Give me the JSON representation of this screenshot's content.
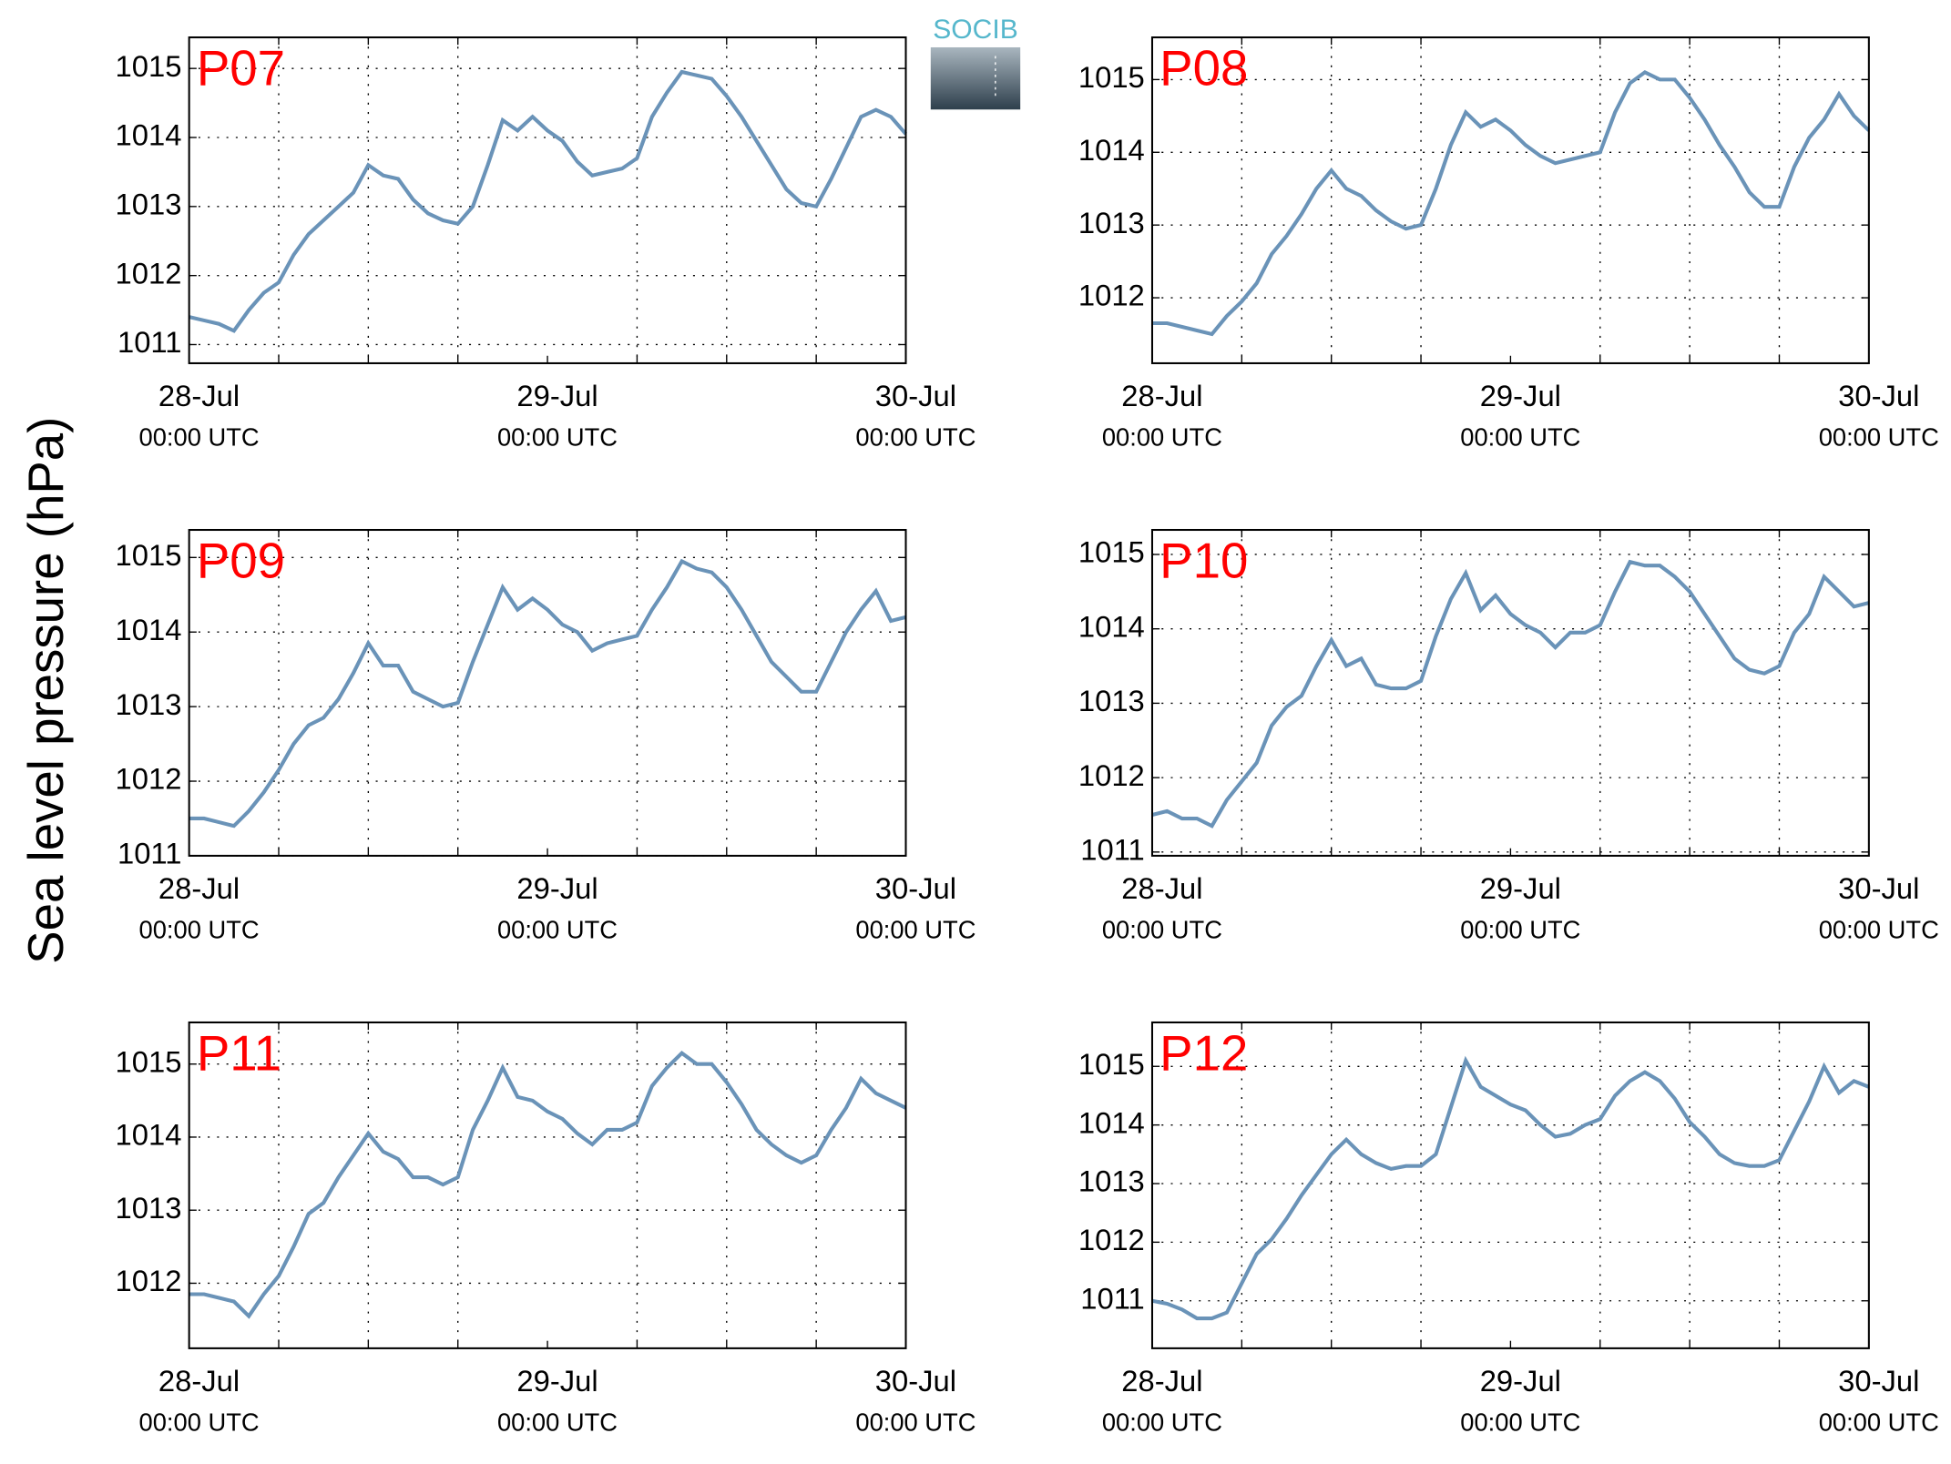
{
  "ylabel": "Sea level pressure (hPa)",
  "logo": "SOCIB",
  "chart_data": [
    {
      "type": "line",
      "title": "P07",
      "color": "#6a93b8",
      "grid": true,
      "x": [
        0,
        1,
        2,
        3,
        4,
        5,
        6,
        7,
        8,
        9,
        10,
        11,
        12,
        13,
        14,
        15,
        16,
        17,
        18,
        19,
        20,
        21,
        22,
        23,
        24,
        25,
        26,
        27,
        28,
        29,
        30,
        31,
        32,
        33,
        34,
        35,
        36,
        37,
        38,
        39,
        40,
        41,
        42,
        43,
        44,
        45,
        46,
        47,
        48
      ],
      "values": [
        1011.4,
        1011.35,
        1011.3,
        1011.2,
        1011.5,
        1011.75,
        1011.9,
        1012.3,
        1012.6,
        1012.8,
        1013.0,
        1013.2,
        1013.6,
        1013.45,
        1013.4,
        1013.1,
        1012.9,
        1012.8,
        1012.75,
        1013.0,
        1013.6,
        1014.25,
        1014.1,
        1014.3,
        1014.1,
        1013.95,
        1013.65,
        1013.45,
        1013.5,
        1013.55,
        1013.7,
        1014.3,
        1014.65,
        1014.95,
        1014.9,
        1014.85,
        1014.6,
        1014.3,
        1013.95,
        1013.6,
        1013.25,
        1013.05,
        1013.0,
        1013.4,
        1013.85,
        1014.3,
        1014.4,
        1014.3,
        1014.05
      ],
      "xlim": [
        0,
        48
      ],
      "xticks": [
        {
          "value": 0,
          "label": "28-Jul",
          "sublabel": "00:00 UTC"
        },
        {
          "value": 24,
          "label": "29-Jul",
          "sublabel": "00:00 UTC"
        },
        {
          "value": 48,
          "label": "30-Jul",
          "sublabel": "00:00 UTC"
        }
      ],
      "xminorticks": [
        6,
        12,
        18,
        30,
        36,
        42
      ],
      "ylim": [
        1010.73,
        1015.45
      ],
      "yticks": [
        1011,
        1012,
        1013,
        1014,
        1015
      ]
    },
    {
      "type": "line",
      "title": "P08",
      "color": "#6a93b8",
      "grid": true,
      "x": [
        0,
        1,
        2,
        3,
        4,
        5,
        6,
        7,
        8,
        9,
        10,
        11,
        12,
        13,
        14,
        15,
        16,
        17,
        18,
        19,
        20,
        21,
        22,
        23,
        24,
        25,
        26,
        27,
        28,
        29,
        30,
        31,
        32,
        33,
        34,
        35,
        36,
        37,
        38,
        39,
        40,
        41,
        42,
        43,
        44,
        45,
        46,
        47,
        48
      ],
      "values": [
        1011.65,
        1011.65,
        1011.6,
        1011.55,
        1011.5,
        1011.75,
        1011.95,
        1012.2,
        1012.6,
        1012.85,
        1013.15,
        1013.5,
        1013.75,
        1013.5,
        1013.4,
        1013.2,
        1013.05,
        1012.95,
        1013.0,
        1013.5,
        1014.1,
        1014.55,
        1014.35,
        1014.45,
        1014.3,
        1014.1,
        1013.95,
        1013.85,
        1013.9,
        1013.95,
        1014.0,
        1014.55,
        1014.95,
        1015.1,
        1015.0,
        1015.0,
        1014.75,
        1014.45,
        1014.1,
        1013.8,
        1013.45,
        1013.25,
        1013.25,
        1013.8,
        1014.2,
        1014.45,
        1014.8,
        1014.5,
        1014.3
      ],
      "xlim": [
        0,
        48
      ],
      "xticks": [
        {
          "value": 0,
          "label": "28-Jul",
          "sublabel": "00:00 UTC"
        },
        {
          "value": 24,
          "label": "29-Jul",
          "sublabel": "00:00 UTC"
        },
        {
          "value": 48,
          "label": "30-Jul",
          "sublabel": "00:00 UTC"
        }
      ],
      "xminorticks": [
        6,
        12,
        18,
        30,
        36,
        42
      ],
      "ylim": [
        1011.1,
        1015.58
      ],
      "yticks": [
        1012,
        1013,
        1014,
        1015
      ]
    },
    {
      "type": "line",
      "title": "P09",
      "color": "#6a93b8",
      "grid": true,
      "x": [
        0,
        1,
        2,
        3,
        4,
        5,
        6,
        7,
        8,
        9,
        10,
        11,
        12,
        13,
        14,
        15,
        16,
        17,
        18,
        19,
        20,
        21,
        22,
        23,
        24,
        25,
        26,
        27,
        28,
        29,
        30,
        31,
        32,
        33,
        34,
        35,
        36,
        37,
        38,
        39,
        40,
        41,
        42,
        43,
        44,
        45,
        46,
        47,
        48
      ],
      "values": [
        1011.5,
        1011.5,
        1011.45,
        1011.4,
        1011.6,
        1011.85,
        1012.15,
        1012.5,
        1012.75,
        1012.85,
        1013.1,
        1013.45,
        1013.85,
        1013.55,
        1013.55,
        1013.2,
        1013.1,
        1013.0,
        1013.05,
        1013.6,
        1014.1,
        1014.6,
        1014.3,
        1014.45,
        1014.3,
        1014.1,
        1014.0,
        1013.75,
        1013.85,
        1013.9,
        1013.95,
        1014.3,
        1014.6,
        1014.95,
        1014.85,
        1014.8,
        1014.6,
        1014.3,
        1013.95,
        1013.6,
        1013.4,
        1013.2,
        1013.2,
        1013.6,
        1014.0,
        1014.3,
        1014.55,
        1014.15,
        1014.2
      ],
      "xlim": [
        0,
        48
      ],
      "xticks": [
        {
          "value": 0,
          "label": "28-Jul",
          "sublabel": "00:00 UTC"
        },
        {
          "value": 24,
          "label": "29-Jul",
          "sublabel": "00:00 UTC"
        },
        {
          "value": 48,
          "label": "30-Jul",
          "sublabel": "00:00 UTC"
        }
      ],
      "xminorticks": [
        6,
        12,
        18,
        30,
        36,
        42
      ],
      "ylim": [
        1011,
        1015.37
      ],
      "yticks": [
        1011,
        1012,
        1013,
        1014,
        1015
      ]
    },
    {
      "type": "line",
      "title": "P10",
      "color": "#6a93b8",
      "grid": true,
      "x": [
        0,
        1,
        2,
        3,
        4,
        5,
        6,
        7,
        8,
        9,
        10,
        11,
        12,
        13,
        14,
        15,
        16,
        17,
        18,
        19,
        20,
        21,
        22,
        23,
        24,
        25,
        26,
        27,
        28,
        29,
        30,
        31,
        32,
        33,
        34,
        35,
        36,
        37,
        38,
        39,
        40,
        41,
        42,
        43,
        44,
        45,
        46,
        47,
        48
      ],
      "values": [
        1011.5,
        1011.55,
        1011.45,
        1011.45,
        1011.35,
        1011.7,
        1011.95,
        1012.2,
        1012.7,
        1012.95,
        1013.1,
        1013.5,
        1013.85,
        1013.5,
        1013.6,
        1013.25,
        1013.2,
        1013.2,
        1013.3,
        1013.9,
        1014.4,
        1014.75,
        1014.25,
        1014.45,
        1014.2,
        1014.05,
        1013.95,
        1013.75,
        1013.95,
        1013.95,
        1014.05,
        1014.5,
        1014.9,
        1014.85,
        1014.85,
        1014.7,
        1014.5,
        1014.2,
        1013.9,
        1013.6,
        1013.45,
        1013.4,
        1013.5,
        1013.95,
        1014.2,
        1014.7,
        1014.5,
        1014.3,
        1014.35
      ],
      "xlim": [
        0,
        48
      ],
      "xticks": [
        {
          "value": 0,
          "label": "28-Jul",
          "sublabel": "00:00 UTC"
        },
        {
          "value": 24,
          "label": "29-Jul",
          "sublabel": "00:00 UTC"
        },
        {
          "value": 48,
          "label": "30-Jul",
          "sublabel": "00:00 UTC"
        }
      ],
      "xminorticks": [
        6,
        12,
        18,
        30,
        36,
        42
      ],
      "ylim": [
        1010.95,
        1015.33
      ],
      "yticks": [
        1011,
        1012,
        1013,
        1014,
        1015
      ]
    },
    {
      "type": "line",
      "title": "P11",
      "color": "#6a93b8",
      "grid": true,
      "x": [
        0,
        1,
        2,
        3,
        4,
        5,
        6,
        7,
        8,
        9,
        10,
        11,
        12,
        13,
        14,
        15,
        16,
        17,
        18,
        19,
        20,
        21,
        22,
        23,
        24,
        25,
        26,
        27,
        28,
        29,
        30,
        31,
        32,
        33,
        34,
        35,
        36,
        37,
        38,
        39,
        40,
        41,
        42,
        43,
        44,
        45,
        46,
        47,
        48
      ],
      "values": [
        1011.85,
        1011.85,
        1011.8,
        1011.75,
        1011.55,
        1011.85,
        1012.1,
        1012.5,
        1012.95,
        1013.1,
        1013.45,
        1013.75,
        1014.05,
        1013.8,
        1013.7,
        1013.45,
        1013.45,
        1013.35,
        1013.45,
        1014.1,
        1014.5,
        1014.95,
        1014.55,
        1014.5,
        1014.35,
        1014.25,
        1014.05,
        1013.9,
        1014.1,
        1014.1,
        1014.2,
        1014.7,
        1014.95,
        1015.15,
        1015.0,
        1015.0,
        1014.75,
        1014.45,
        1014.1,
        1013.9,
        1013.75,
        1013.65,
        1013.75,
        1014.1,
        1014.4,
        1014.8,
        1014.6,
        1014.5,
        1014.4
      ],
      "xlim": [
        0,
        48
      ],
      "xticks": [
        {
          "value": 0,
          "label": "28-Jul",
          "sublabel": "00:00 UTC"
        },
        {
          "value": 24,
          "label": "29-Jul",
          "sublabel": "00:00 UTC"
        },
        {
          "value": 48,
          "label": "30-Jul",
          "sublabel": "00:00 UTC"
        }
      ],
      "xminorticks": [
        6,
        12,
        18,
        30,
        36,
        42
      ],
      "ylim": [
        1011.11,
        1015.57
      ],
      "yticks": [
        1012,
        1013,
        1014,
        1015
      ]
    },
    {
      "type": "line",
      "title": "P12",
      "color": "#6a93b8",
      "grid": true,
      "x": [
        0,
        1,
        2,
        3,
        4,
        5,
        6,
        7,
        8,
        9,
        10,
        11,
        12,
        13,
        14,
        15,
        16,
        17,
        18,
        19,
        20,
        21,
        22,
        23,
        24,
        25,
        26,
        27,
        28,
        29,
        30,
        31,
        32,
        33,
        34,
        35,
        36,
        37,
        38,
        39,
        40,
        41,
        42,
        43,
        44,
        45,
        46,
        47,
        48
      ],
      "values": [
        1011.0,
        1010.95,
        1010.85,
        1010.7,
        1010.7,
        1010.8,
        1011.3,
        1011.8,
        1012.05,
        1012.4,
        1012.8,
        1013.15,
        1013.5,
        1013.75,
        1013.5,
        1013.35,
        1013.25,
        1013.3,
        1013.3,
        1013.5,
        1014.3,
        1015.1,
        1014.65,
        1014.5,
        1014.35,
        1014.25,
        1014.0,
        1013.8,
        1013.85,
        1014.0,
        1014.1,
        1014.5,
        1014.75,
        1014.9,
        1014.75,
        1014.45,
        1014.05,
        1013.8,
        1013.5,
        1013.35,
        1013.3,
        1013.3,
        1013.4,
        1013.9,
        1014.4,
        1015.0,
        1014.55,
        1014.75,
        1014.65
      ],
      "xlim": [
        0,
        48
      ],
      "xticks": [
        {
          "value": 0,
          "label": "28-Jul",
          "sublabel": "00:00 UTC"
        },
        {
          "value": 24,
          "label": "29-Jul",
          "sublabel": "00:00 UTC"
        },
        {
          "value": 48,
          "label": "30-Jul",
          "sublabel": "00:00 UTC"
        }
      ],
      "xminorticks": [
        6,
        12,
        18,
        30,
        36,
        42
      ],
      "ylim": [
        1010.19,
        1015.75
      ],
      "yticks": [
        1011,
        1012,
        1013,
        1014,
        1015
      ]
    }
  ]
}
